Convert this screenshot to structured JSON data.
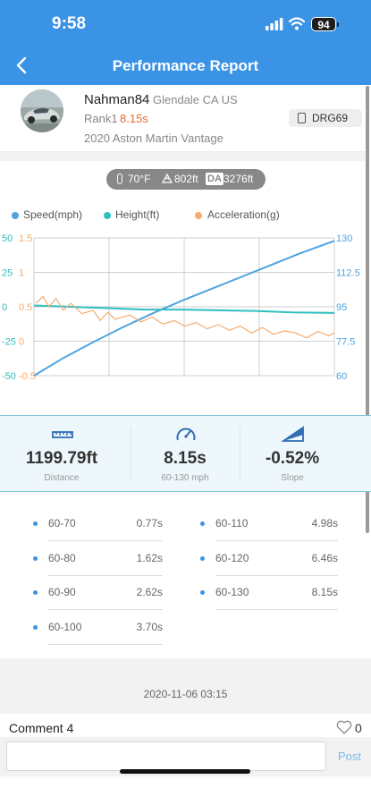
{
  "status_bar": {
    "time": "9:58",
    "battery": "94"
  },
  "nav": {
    "title": "Performance Report"
  },
  "profile": {
    "username": "Nahman84",
    "location": "Glendale CA US",
    "rank_label": "Rank1",
    "rank_time": "8.15s",
    "car": "2020 Aston Martin Vantage",
    "device": "DRG69"
  },
  "conditions": {
    "temperature": "70°F",
    "altitude": "802ft",
    "da_label": "DA",
    "density_altitude": "3276ft"
  },
  "legend": {
    "speed": "Speed(mph)",
    "height": "Height(ft)",
    "acceleration": "Acceleration(g)"
  },
  "colors": {
    "speed": "#4fa3e0",
    "height": "#2fbfbf",
    "acceleration": "#f5ab6e",
    "accent": "#3b93e6",
    "rank_time": "#f0692d"
  },
  "chart_data": {
    "type": "line",
    "x_range": [
      0,
      8.15
    ],
    "grid": true,
    "axes": {
      "height_left": {
        "ticks": [
          "50",
          "25",
          "0",
          "-25",
          "-50"
        ],
        "range": [
          -50,
          50
        ]
      },
      "acceleration_left": {
        "ticks": [
          "1.5",
          "1",
          "0.5",
          "0",
          "-0.5"
        ],
        "range": [
          -0.5,
          1.5
        ]
      },
      "speed_right": {
        "ticks": [
          "130",
          "112.5",
          "95",
          "77.5",
          "60"
        ],
        "range": [
          60,
          130
        ]
      }
    },
    "series": [
      {
        "name": "Speed(mph)",
        "axis": "speed_right",
        "x": [
          0,
          0.8,
          1.6,
          2.4,
          3.2,
          4.0,
          4.8,
          5.6,
          6.4,
          7.2,
          8.15
        ],
        "y": [
          60,
          69,
          77,
          84.5,
          91.5,
          98,
          104,
          110,
          116,
          122,
          128.5
        ]
      },
      {
        "name": "Height(ft)",
        "axis": "height_left",
        "x": [
          0,
          1,
          2,
          3,
          4,
          5,
          6,
          7,
          8.15
        ],
        "y": [
          1,
          0,
          -1,
          -2,
          -2,
          -2.5,
          -3,
          -4,
          -4.5
        ]
      },
      {
        "name": "Acceleration(g)",
        "axis": "acceleration_left",
        "x": [
          0.05,
          0.25,
          0.4,
          0.6,
          0.8,
          1.0,
          1.3,
          1.6,
          1.8,
          2.0,
          2.2,
          2.6,
          2.9,
          3.2,
          3.5,
          3.8,
          4.1,
          4.4,
          4.7,
          5.0,
          5.3,
          5.6,
          5.9,
          6.2,
          6.5,
          6.8,
          7.1,
          7.4,
          7.7,
          8.0,
          8.15
        ],
        "y": [
          0.55,
          0.65,
          0.5,
          0.62,
          0.45,
          0.55,
          0.4,
          0.45,
          0.3,
          0.42,
          0.32,
          0.38,
          0.28,
          0.35,
          0.25,
          0.3,
          0.22,
          0.27,
          0.18,
          0.24,
          0.16,
          0.22,
          0.12,
          0.2,
          0.1,
          0.15,
          0.12,
          0.05,
          0.14,
          0.08,
          0.12
        ]
      }
    ]
  },
  "stats": [
    {
      "value": "1199.79ft",
      "label": "Distance",
      "icon": "ruler-icon"
    },
    {
      "value": "8.15s",
      "label": "60-130 mph",
      "icon": "speedometer-icon"
    },
    {
      "value": "-0.52%",
      "label": "Slope",
      "icon": "slope-icon"
    }
  ],
  "splits": [
    {
      "range": "60-70",
      "time": "0.77s"
    },
    {
      "range": "60-110",
      "time": "4.98s"
    },
    {
      "range": "60-80",
      "time": "1.62s"
    },
    {
      "range": "60-120",
      "time": "6.46s"
    },
    {
      "range": "60-90",
      "time": "2.62s"
    },
    {
      "range": "60-130",
      "time": "8.15s"
    },
    {
      "range": "60-100",
      "time": "3.70s"
    }
  ],
  "date": "2020-11-06 03:15",
  "comments": {
    "label": "Comment 4",
    "likes": "0",
    "input_value": "",
    "post_label": "Post"
  }
}
